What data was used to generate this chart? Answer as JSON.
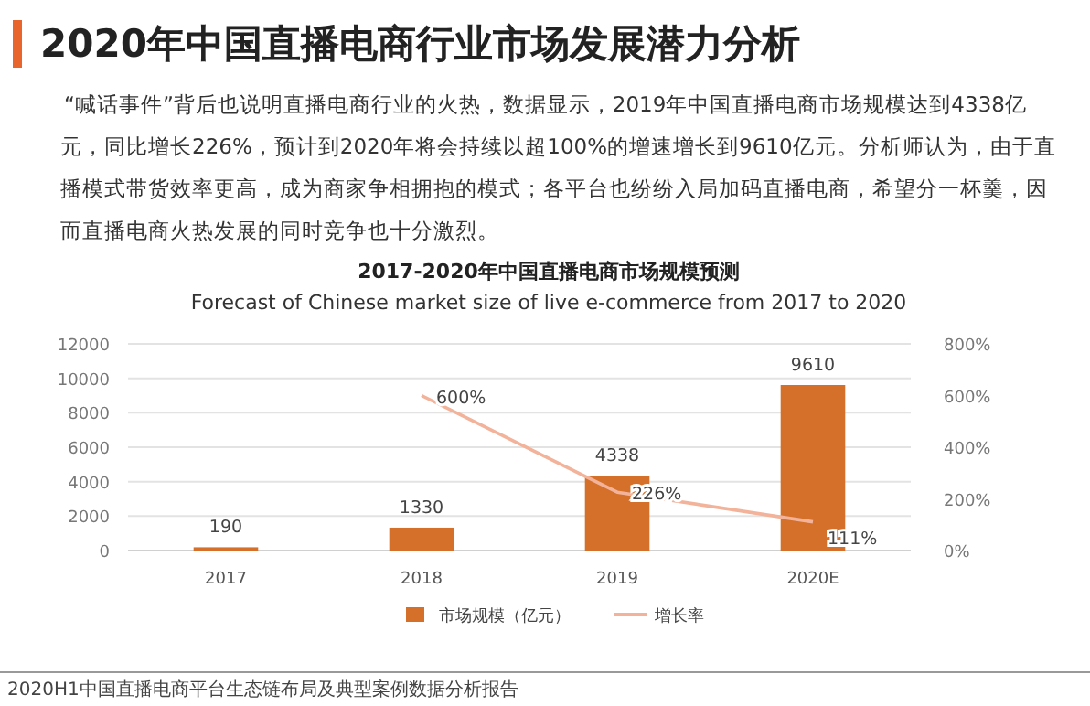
{
  "chart_data": {
    "type": "bar",
    "title": "2020年中国直播电商行业市场发展潜力分析",
    "subtitle": "“喊话事件”背后也说明直播电商行业的火热，数据显示，2019年中国直播电商市场规模达到4338亿元，同比增长226%，预计到2020年将会持续以超100%的增速增长到9610亿元。分析师认为，由于直播模式带货效率更高，成为商家争相拥抱的模式；各平台也纷纷入局加码直播电商，希望分一杯羹，因而直播电商火热发展的同时竞争也十分激烈。",
    "annotations": [
      "2017-2020年中国直播电商市场规模预测",
      "Forecast of Chinese market size of live e-commerce from 2017 to 2020",
      "2020H1中国直播电商平台生态链布局及典型案例数据分析报告"
    ],
    "categories": [
      "2017",
      "2018",
      "2019",
      "2020E"
    ],
    "series": [
      {
        "name": "市场规模（亿元）",
        "color": "#d4702a",
        "values": [
          190,
          1330,
          4338,
          9610
        ]
      },
      {
        "name": "增长率",
        "type": "line",
        "axis": "y2",
        "color": "#f2b39a",
        "values": [
          null,
          600,
          226,
          111
        ],
        "value_labels": [
          null,
          "600%",
          "226%",
          "111%"
        ]
      }
    ],
    "ylim": [
      0,
      12000
    ],
    "yticks": [
      0,
      2000,
      4000,
      6000,
      8000,
      10000,
      12000
    ],
    "y2lim": [
      0,
      800
    ],
    "y2ticks": [
      {
        "value": 0,
        "label": "0%"
      },
      {
        "value": 200,
        "label": "200%"
      },
      {
        "value": 400,
        "label": "400%"
      },
      {
        "value": 600,
        "label": "600%"
      },
      {
        "value": 800,
        "label": "800%"
      }
    ],
    "grid": "y",
    "legend": "bottom",
    "data_labels": true,
    "marker": "none",
    "line_style": "solid"
  }
}
